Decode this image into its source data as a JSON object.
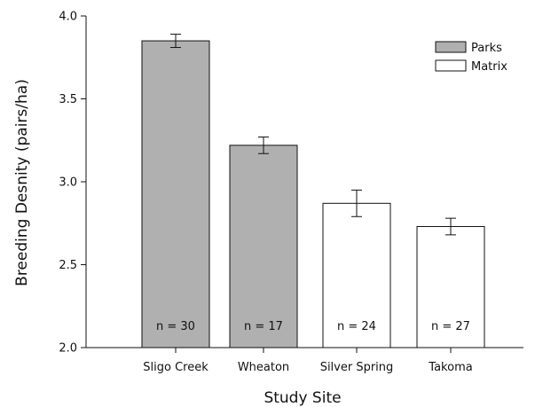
{
  "chart_data": {
    "type": "bar",
    "title": "",
    "xlabel": "Study Site",
    "ylabel": "Breeding Desnity (pairs/ha)",
    "ylim": [
      2.0,
      4.0
    ],
    "yticks": [
      "2.0",
      "2.5",
      "3.0",
      "3.5",
      "4.0"
    ],
    "categories": [
      "Sligo Creek",
      "Wheaton",
      "Silver Spring",
      "Takoma"
    ],
    "values": [
      3.85,
      3.22,
      2.87,
      2.73
    ],
    "errors": [
      0.04,
      0.05,
      0.08,
      0.05
    ],
    "groups": [
      "Parks",
      "Parks",
      "Matrix",
      "Matrix"
    ],
    "sample_labels": [
      "n = 30",
      "n = 17",
      "n = 24",
      "n = 27"
    ],
    "legend": {
      "position": "top-right",
      "items": [
        {
          "label": "Parks",
          "color": "#b0b0b0"
        },
        {
          "label": "Matrix",
          "color": "#ffffff"
        }
      ]
    },
    "grid": false
  }
}
